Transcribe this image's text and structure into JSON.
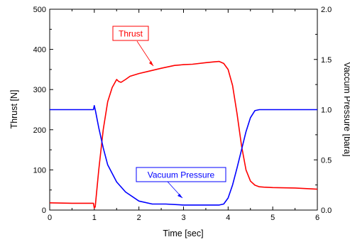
{
  "chart_data": {
    "type": "line",
    "xlabel": "Time [sec]",
    "ylabel": "Thrust [N]",
    "y2label": "Vaccum Pressure [bara]",
    "xlim": [
      0,
      6
    ],
    "ylim": [
      0,
      500
    ],
    "y2lim": [
      0,
      2.0
    ],
    "x_ticks": [
      "0",
      "1",
      "2",
      "3",
      "4",
      "5",
      "6"
    ],
    "y_ticks": [
      "0",
      "100",
      "200",
      "300",
      "400",
      "500"
    ],
    "y2_ticks": [
      "0.0",
      "0.5",
      "1.0",
      "1.5",
      "2.0"
    ],
    "grid": false,
    "series": [
      {
        "name": "Thrust",
        "axis": "left",
        "color": "#ff0000",
        "x": [
          0,
          0.5,
          0.98,
          1.0,
          1.02,
          1.1,
          1.2,
          1.3,
          1.4,
          1.5,
          1.55,
          1.6,
          1.7,
          1.8,
          2.0,
          2.2,
          2.5,
          2.8,
          3.0,
          3.2,
          3.5,
          3.7,
          3.8,
          3.9,
          4.0,
          4.1,
          4.2,
          4.3,
          4.4,
          4.5,
          4.6,
          4.7,
          4.8,
          5.0,
          5.5,
          6.0
        ],
        "y": [
          18,
          17,
          17,
          5,
          8,
          100,
          200,
          270,
          305,
          325,
          320,
          318,
          325,
          333,
          340,
          345,
          353,
          360,
          362,
          363,
          367,
          369,
          370,
          365,
          350,
          310,
          240,
          160,
          100,
          72,
          62,
          58,
          57,
          56,
          55,
          52
        ]
      },
      {
        "name": "Vacuum Pressure",
        "axis": "right",
        "color": "#0000ff",
        "x": [
          0,
          0.5,
          0.98,
          1.0,
          1.03,
          1.1,
          1.2,
          1.3,
          1.5,
          1.7,
          2.0,
          2.3,
          2.6,
          3.0,
          3.5,
          3.8,
          3.9,
          4.0,
          4.1,
          4.2,
          4.3,
          4.4,
          4.5,
          4.6,
          4.7,
          4.8,
          5.0,
          5.5,
          6.0
        ],
        "y": [
          1.0,
          1.0,
          1.0,
          1.04,
          0.98,
          0.82,
          0.62,
          0.45,
          0.28,
          0.18,
          0.09,
          0.06,
          0.06,
          0.05,
          0.05,
          0.05,
          0.06,
          0.12,
          0.25,
          0.42,
          0.6,
          0.78,
          0.92,
          0.99,
          1.0,
          1.0,
          1.0,
          1.0,
          1.0
        ]
      }
    ],
    "annotations": [
      {
        "text": "Thrust",
        "color": "#ff0000"
      },
      {
        "text": "Vacuum Pressure",
        "color": "#0000ff"
      }
    ]
  }
}
